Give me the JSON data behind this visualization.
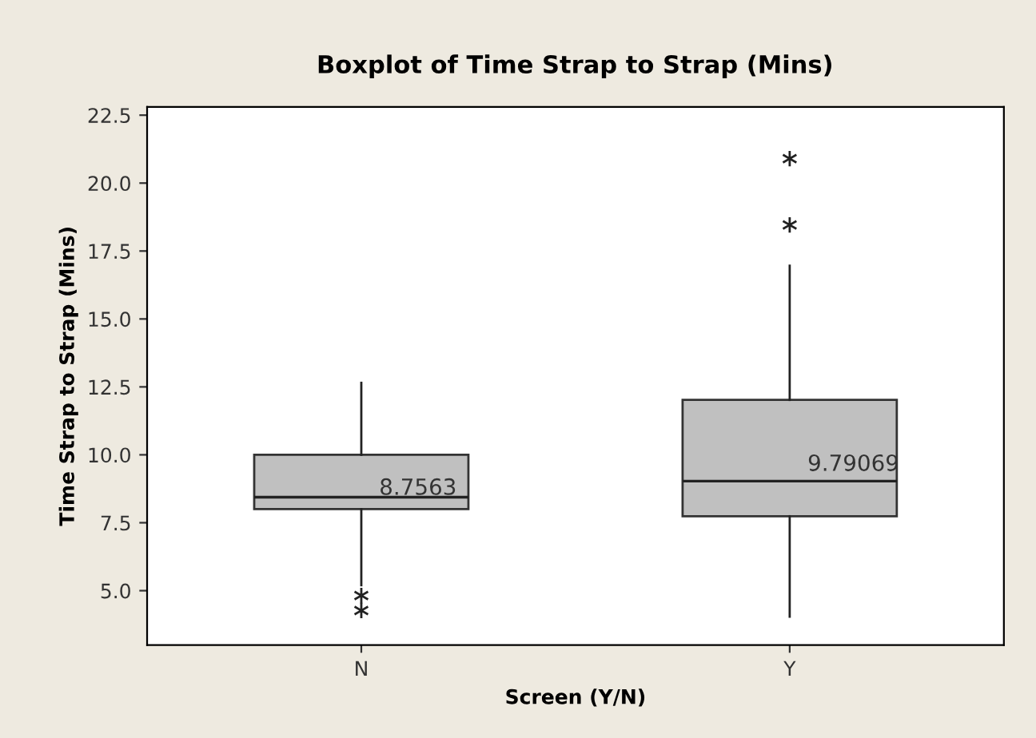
{
  "chart_data": {
    "type": "box",
    "title": "Boxplot of Time Strap to Strap (Mins)",
    "xlabel": "Screen (Y/N)",
    "ylabel": "Time Strap to Strap (Mins)",
    "categories": [
      "N",
      "Y"
    ],
    "boxes": [
      {
        "low": 5.2,
        "q1": 8.0,
        "median": 8.44,
        "q3": 10.0,
        "high": 12.65,
        "outliers": [
          4.82,
          4.27
        ]
      },
      {
        "low": 4.04,
        "q1": 7.74,
        "median": 9.03,
        "q3": 12.02,
        "high": 16.96,
        "outliers": [
          20.9,
          18.46
        ]
      }
    ],
    "color": "#c0c0c0",
    "ylim": [
      3.0,
      22.8
    ],
    "yticks": [
      {
        "value": 5.0,
        "label": "5.0"
      },
      {
        "value": 7.5,
        "label": "7.5"
      },
      {
        "value": 10.0,
        "label": "10.0"
      },
      {
        "value": 12.5,
        "label": "12.5"
      },
      {
        "value": 15.0,
        "label": "15.0"
      },
      {
        "value": 17.5,
        "label": "17.5"
      },
      {
        "value": 20.0,
        "label": "20.0"
      },
      {
        "value": 22.5,
        "label": "22.5"
      }
    ],
    "grid": false,
    "annotations": [
      "8.7563",
      "9.79069"
    ]
  }
}
